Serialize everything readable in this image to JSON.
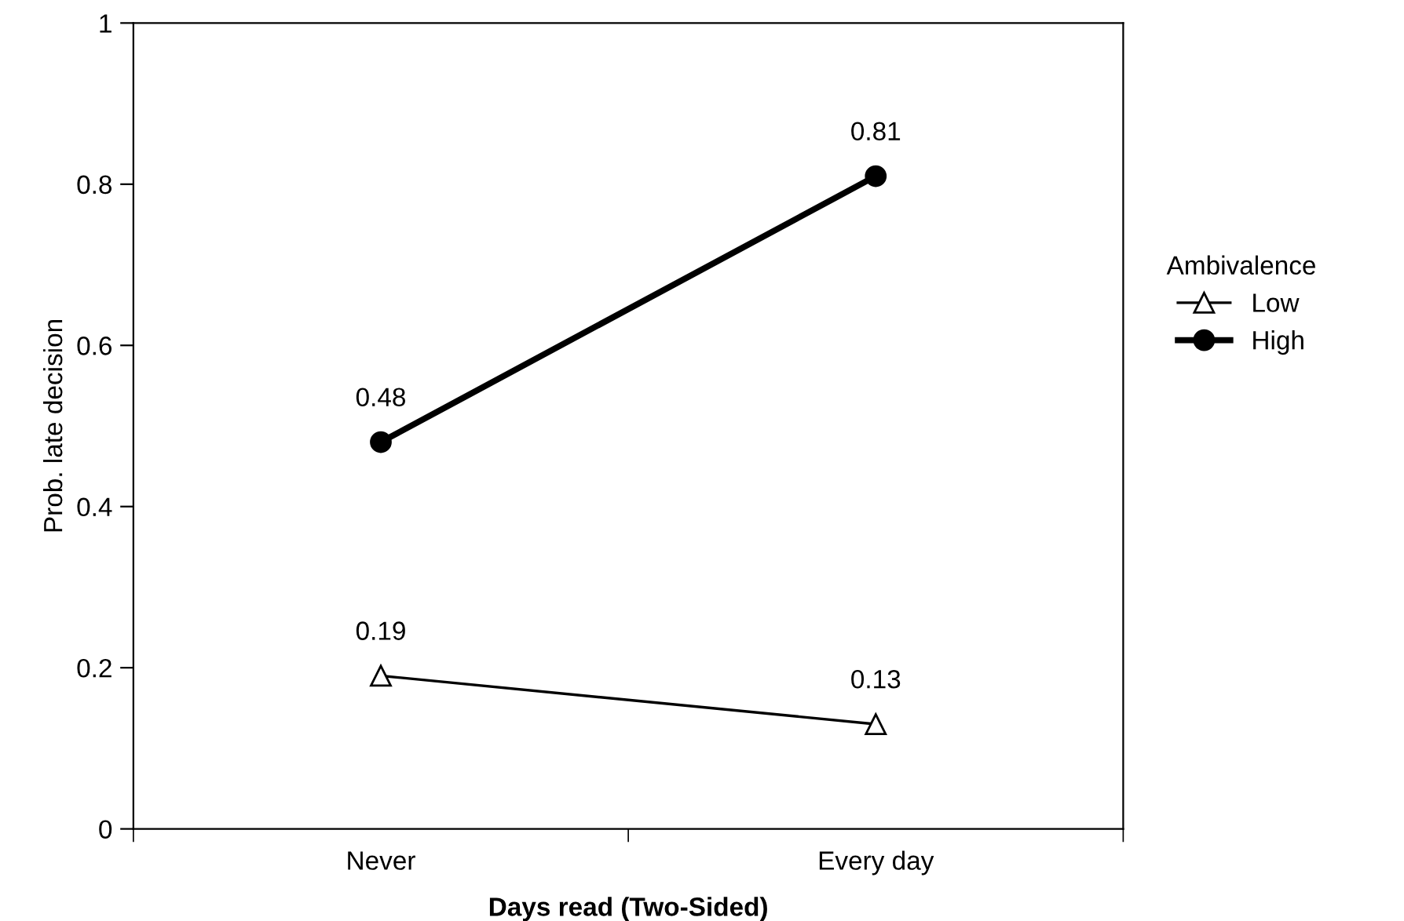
{
  "chart_data": {
    "type": "line",
    "xlabel": "Days read (Two-Sided)",
    "ylabel": "Prob. late decision",
    "legend_title": "Ambivalence",
    "categories": [
      "Never",
      "Every day"
    ],
    "series": [
      {
        "name": "Low",
        "color": "#000000",
        "values": [
          0.19,
          0.13
        ],
        "marker": "triangle"
      },
      {
        "name": "High",
        "color": "#000000",
        "values": [
          0.48,
          0.81
        ],
        "marker": "circle"
      }
    ],
    "ylim": [
      0,
      1
    ],
    "yticks": [
      0,
      0.2,
      0.4,
      0.6,
      0.8,
      1
    ],
    "data_labels": true,
    "legend": "right",
    "grid": false
  }
}
